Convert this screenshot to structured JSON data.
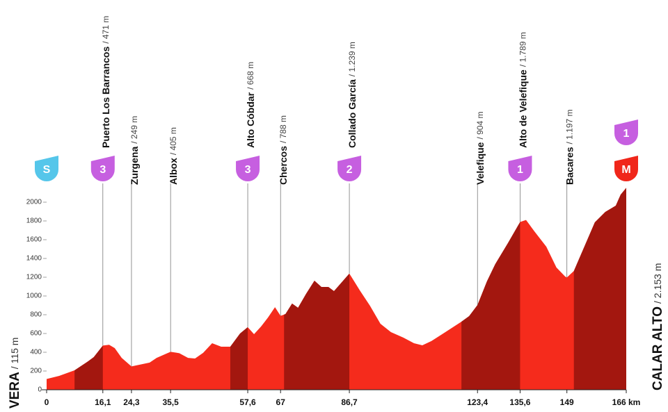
{
  "chart_data": {
    "type": "area",
    "x": [
      0,
      3.6,
      8,
      11.6,
      13.5,
      16.1,
      17.9,
      19.5,
      21.5,
      24.3,
      27.5,
      29.5,
      31.5,
      35.5,
      38,
      40.5,
      42.5,
      44.8,
      47.4,
      50,
      52.6,
      55.4,
      57.6,
      59.4,
      61.4,
      63.4,
      65.4,
      67,
      68.4,
      70.3,
      72,
      74.3,
      76.7,
      78.7,
      80.7,
      82.3,
      86.7,
      89.7,
      92.6,
      95.6,
      98.6,
      102.2,
      105.2,
      107.6,
      110.2,
      114.2,
      118.8,
      121,
      123.4,
      126.1,
      128.5,
      132.1,
      135.6,
      137.3,
      139.7,
      143.1,
      146,
      148.5,
      149,
      151,
      154,
      157,
      160,
      163,
      164.4,
      166
    ],
    "values": [
      115,
      148,
      207,
      296,
      348,
      471,
      480,
      444,
      340,
      249,
      274,
      290,
      340,
      405,
      390,
      340,
      333,
      393,
      496,
      459,
      459,
      600,
      668,
      593,
      674,
      770,
      881,
      788,
      807,
      919,
      874,
      1022,
      1163,
      1096,
      1096,
      1052,
      1239,
      1059,
      896,
      704,
      615,
      556,
      496,
      474,
      519,
      615,
      726,
      785,
      904,
      1156,
      1341,
      1563,
      1789,
      1810,
      1689,
      1526,
      1304,
      1207,
      1197,
      1267,
      1526,
      1785,
      1896,
      1963,
      2081,
      2153
    ],
    "color": "#f52b1c",
    "climb_color": "#a3170f",
    "climbs": [
      [
        8,
        16.1
      ],
      [
        52.6,
        57.6
      ],
      [
        68,
        86.7
      ],
      [
        118.8,
        135.6
      ],
      [
        151,
        166
      ]
    ],
    "xlim": [
      0,
      166
    ],
    "ylim": [
      0,
      2200
    ],
    "yticks": [
      0,
      200,
      400,
      600,
      800,
      1000,
      1200,
      1400,
      1600,
      1800,
      2000
    ],
    "xticks": [
      0,
      {
        "value": 16.1,
        "label": "16,1",
        "name": "Puerto Los Barrancos",
        "elevation": "/ 471 m",
        "category": "3"
      },
      {
        "value": 24.3,
        "label": "24,3",
        "name": "Zurgena",
        "elevation": "/ 249 m"
      },
      {
        "value": 35.5,
        "label": "35,5",
        "name": "Albox",
        "elevation": "/ 405 m"
      },
      {
        "value": 57.6,
        "label": "57,6",
        "name": "Alto Cóbdar",
        "elevation": "/ 668 m",
        "category": "3"
      },
      {
        "value": 67,
        "label": "67",
        "name": "Chercos",
        "elevation": "/ 788 m"
      },
      {
        "value": 86.7,
        "label": "86,7",
        "name": "Collado García",
        "elevation": "/ 1.239 m",
        "category": "2"
      },
      {
        "value": 123.4,
        "label": "123,4",
        "name": "Velefique",
        "elevation": "/ 904 m"
      },
      {
        "value": 135.6,
        "label": "135,6",
        "name": "Alto de Velefique",
        "elevation": "/ 1.789 m",
        "category": "1"
      },
      {
        "value": 149,
        "label": "149",
        "name": "Bacares",
        "elevation": "/ 1.197 m"
      },
      {
        "value": 166,
        "label": "166 km"
      }
    ],
    "start": {
      "name": "VERA",
      "elevation": "/ 115 m",
      "badge": "S",
      "color": "#55c6ea"
    },
    "finish": {
      "name": "CALAR ALTO",
      "elevation": "/ 2.153 m",
      "badge": "M",
      "category": "1",
      "color": "#f0261a"
    },
    "badge_color": "#c65fe0"
  }
}
